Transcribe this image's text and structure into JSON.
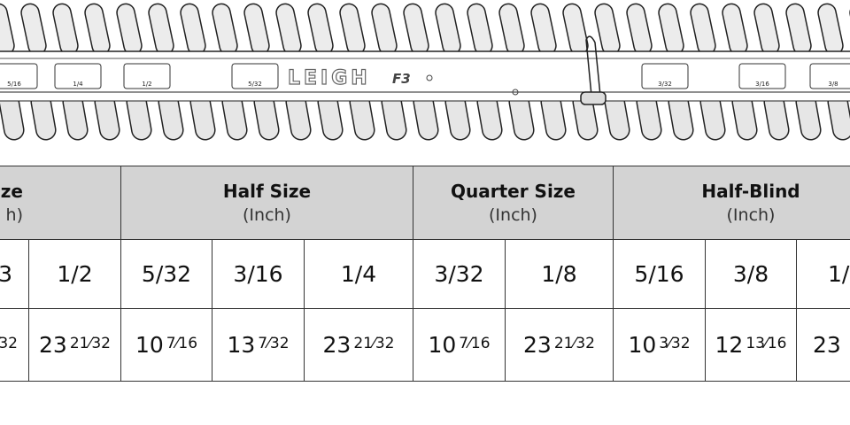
{
  "jig": {
    "logo": "LEIGH",
    "model": "F3",
    "labels": [
      "5/16",
      "1/4",
      "5/32",
      "1/2",
      "3/32",
      "3/16",
      "3/8"
    ]
  },
  "table": {
    "header_groups": [
      {
        "title": "ize",
        "unit": "h)"
      },
      {
        "title": "Half Size",
        "unit": "(Inch)"
      },
      {
        "title": "Quarter Size",
        "unit": "(Inch)"
      },
      {
        "title": "Half-Blind",
        "unit": "(Inch)"
      }
    ],
    "sizes": [
      "3",
      "1/2",
      "5/32",
      "3/16",
      "1/4",
      "3/32",
      "1/8",
      "5/16",
      "3/8",
      "1/"
    ],
    "lengths": [
      {
        "frac": "⁄32"
      },
      {
        "whole": "23",
        "frac": "21⁄32"
      },
      {
        "whole": "10",
        "frac": "7⁄16"
      },
      {
        "whole": "13",
        "frac": "7⁄32"
      },
      {
        "whole": "23",
        "frac": "21⁄32"
      },
      {
        "whole": "10",
        "frac": "7⁄16"
      },
      {
        "whole": "23",
        "frac": "21⁄32"
      },
      {
        "whole": "10",
        "frac": "3⁄32"
      },
      {
        "whole": "12",
        "frac": "13⁄16"
      },
      {
        "whole": "23"
      }
    ]
  }
}
